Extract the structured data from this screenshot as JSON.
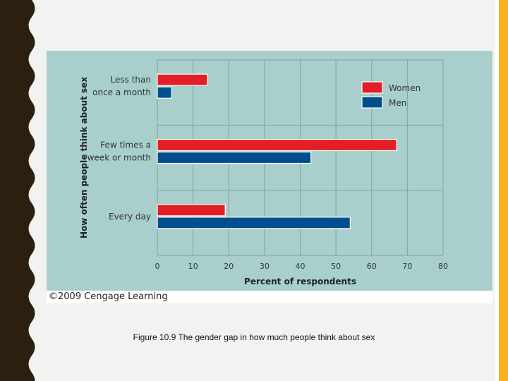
{
  "colors": {
    "women": "#e21e26",
    "men": "#004f8c",
    "panel": "#a8cfcc",
    "grid": "#8a9f9d",
    "accent": "#f5b324"
  },
  "copyright": "©2009 Cengage Learning",
  "caption": "Figure 10.9  The gender gap in how much people think about sex",
  "chart_data": {
    "type": "bar",
    "orientation": "horizontal",
    "categories": [
      [
        "Less than",
        "once a month"
      ],
      [
        "Few times a",
        "week or month"
      ],
      [
        "Every day"
      ]
    ],
    "series": [
      {
        "name": "Women",
        "values": [
          14,
          67,
          19
        ]
      },
      {
        "name": "Men",
        "values": [
          4,
          43,
          54
        ]
      }
    ],
    "xlabel": "Percent of respondents",
    "ylabel": "How often people think about sex",
    "xlim": [
      0,
      80
    ],
    "xticks": [
      0,
      10,
      20,
      30,
      40,
      50,
      60,
      70,
      80
    ],
    "grid": true,
    "legend_position": "top-right"
  }
}
